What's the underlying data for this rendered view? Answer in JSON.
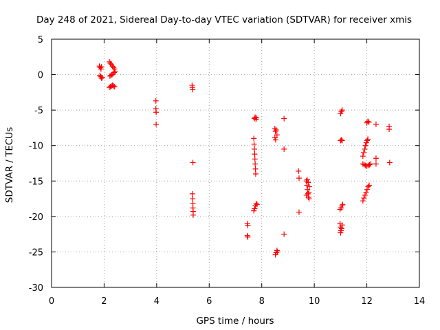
{
  "chart_data": {
    "type": "scatter",
    "title": "Day 248 of 2021, Sidereal Day-to-day VTEC variation (SDTVAR) for receiver xmis",
    "xlabel": "GPS time / hours",
    "ylabel": "SDTVAR / TECUs",
    "xlim": [
      0,
      14
    ],
    "ylim": [
      -30,
      5
    ],
    "xticks": [
      0,
      2,
      4,
      6,
      8,
      10,
      12,
      14
    ],
    "yticks": [
      -30,
      -25,
      -20,
      -15,
      -10,
      -5,
      0,
      5
    ],
    "xtick_labels": [
      "0",
      "2",
      "4",
      "6",
      "8",
      "10",
      "12",
      "14"
    ],
    "ytick_labels": [
      "-30",
      "-25",
      "-20",
      "-15",
      "-10",
      "-5",
      "0",
      "5"
    ],
    "grid": true,
    "marker": "+",
    "color": "#ff0000",
    "series": [
      {
        "name": "SDTVAR",
        "points": [
          [
            1.82,
            1.2
          ],
          [
            1.85,
            1.0
          ],
          [
            1.88,
            0.8
          ],
          [
            1.9,
            1.1
          ],
          [
            1.84,
            -0.1
          ],
          [
            1.87,
            -0.3
          ],
          [
            1.9,
            -0.5
          ],
          [
            1.93,
            -0.4
          ],
          [
            2.2,
            1.8
          ],
          [
            2.24,
            1.6
          ],
          [
            2.28,
            1.4
          ],
          [
            2.32,
            1.2
          ],
          [
            2.36,
            1.0
          ],
          [
            2.4,
            0.8
          ],
          [
            2.22,
            -0.2
          ],
          [
            2.26,
            -0.1
          ],
          [
            2.3,
            0.0
          ],
          [
            2.34,
            0.1
          ],
          [
            2.38,
            0.3
          ],
          [
            2.42,
            0.4
          ],
          [
            2.2,
            -1.8
          ],
          [
            2.24,
            -1.7
          ],
          [
            2.28,
            -1.6
          ],
          [
            2.32,
            -1.5
          ],
          [
            2.36,
            -1.6
          ],
          [
            2.4,
            -1.7
          ],
          [
            3.97,
            -3.7
          ],
          [
            3.97,
            -4.8
          ],
          [
            3.98,
            -5.3
          ],
          [
            3.98,
            -7.0
          ],
          [
            5.35,
            -1.5
          ],
          [
            5.36,
            -1.8
          ],
          [
            5.37,
            -2.1
          ],
          [
            5.38,
            -12.4
          ],
          [
            5.36,
            -16.8
          ],
          [
            5.37,
            -17.5
          ],
          [
            5.38,
            -18.2
          ],
          [
            5.38,
            -18.8
          ],
          [
            5.39,
            -19.3
          ],
          [
            5.39,
            -19.8
          ],
          [
            7.45,
            -21.0
          ],
          [
            7.47,
            -21.3
          ],
          [
            7.45,
            -22.7
          ],
          [
            7.47,
            -22.9
          ],
          [
            7.72,
            -6.2
          ],
          [
            7.75,
            -6.0
          ],
          [
            7.78,
            -6.3
          ],
          [
            7.8,
            -6.1
          ],
          [
            7.7,
            -9.0
          ],
          [
            7.71,
            -9.8
          ],
          [
            7.72,
            -10.5
          ],
          [
            7.73,
            -11.2
          ],
          [
            7.74,
            -11.9
          ],
          [
            7.75,
            -12.6
          ],
          [
            7.76,
            -13.3
          ],
          [
            7.77,
            -14.0
          ],
          [
            7.7,
            -19.2
          ],
          [
            7.73,
            -18.9
          ],
          [
            7.76,
            -18.5
          ],
          [
            7.79,
            -18.2
          ],
          [
            7.82,
            -18.3
          ],
          [
            8.5,
            -7.6
          ],
          [
            8.52,
            -8.0
          ],
          [
            8.55,
            -7.8
          ],
          [
            8.58,
            -8.5
          ],
          [
            8.5,
            -8.9
          ],
          [
            8.53,
            -9.2
          ],
          [
            8.52,
            -25.4
          ],
          [
            8.55,
            -25.1
          ],
          [
            8.58,
            -24.8
          ],
          [
            8.6,
            -25.0
          ],
          [
            8.85,
            -6.2
          ],
          [
            8.85,
            -10.5
          ],
          [
            8.85,
            -22.5
          ],
          [
            9.4,
            -13.6
          ],
          [
            9.42,
            -14.6
          ],
          [
            9.42,
            -19.4
          ],
          [
            9.7,
            -15.0
          ],
          [
            9.72,
            -15.6
          ],
          [
            9.74,
            -16.2
          ],
          [
            9.76,
            -16.8
          ],
          [
            9.78,
            -17.3
          ],
          [
            9.8,
            -17.5
          ],
          [
            9.73,
            -14.8
          ],
          [
            9.77,
            -15.2
          ],
          [
            9.81,
            -15.8
          ],
          [
            9.79,
            -16.6
          ],
          [
            9.7,
            -17.0
          ],
          [
            11.0,
            -5.5
          ],
          [
            11.03,
            -5.2
          ],
          [
            11.06,
            -5.0
          ],
          [
            11.0,
            -9.3
          ],
          [
            11.03,
            -9.2
          ],
          [
            11.06,
            -9.3
          ],
          [
            10.98,
            -21.0
          ],
          [
            11.0,
            -21.5
          ],
          [
            11.02,
            -22.0
          ],
          [
            11.04,
            -21.7
          ],
          [
            11.06,
            -21.2
          ],
          [
            11.0,
            -22.3
          ],
          [
            10.98,
            -19.0
          ],
          [
            11.02,
            -18.8
          ],
          [
            11.06,
            -18.5
          ],
          [
            11.08,
            -18.3
          ],
          [
            11.85,
            -11.5
          ],
          [
            11.88,
            -11.0
          ],
          [
            11.92,
            -10.5
          ],
          [
            11.95,
            -10.0
          ],
          [
            11.98,
            -9.6
          ],
          [
            12.01,
            -9.3
          ],
          [
            12.04,
            -9.1
          ],
          [
            11.85,
            -12.6
          ],
          [
            11.9,
            -12.7
          ],
          [
            11.95,
            -12.8
          ],
          [
            12.0,
            -12.9
          ],
          [
            12.05,
            -12.8
          ],
          [
            12.1,
            -12.7
          ],
          [
            12.15,
            -12.6
          ],
          [
            11.85,
            -17.8
          ],
          [
            11.89,
            -17.4
          ],
          [
            11.93,
            -17.0
          ],
          [
            11.97,
            -16.6
          ],
          [
            12.01,
            -16.2
          ],
          [
            12.05,
            -15.8
          ],
          [
            12.09,
            -15.6
          ],
          [
            12.0,
            -6.8
          ],
          [
            12.04,
            -6.6
          ],
          [
            12.08,
            -6.7
          ],
          [
            12.35,
            -7.0
          ],
          [
            12.35,
            -11.8
          ],
          [
            12.35,
            -12.6
          ],
          [
            12.85,
            -7.3
          ],
          [
            12.85,
            -7.7
          ],
          [
            12.87,
            -12.4
          ]
        ]
      }
    ]
  }
}
